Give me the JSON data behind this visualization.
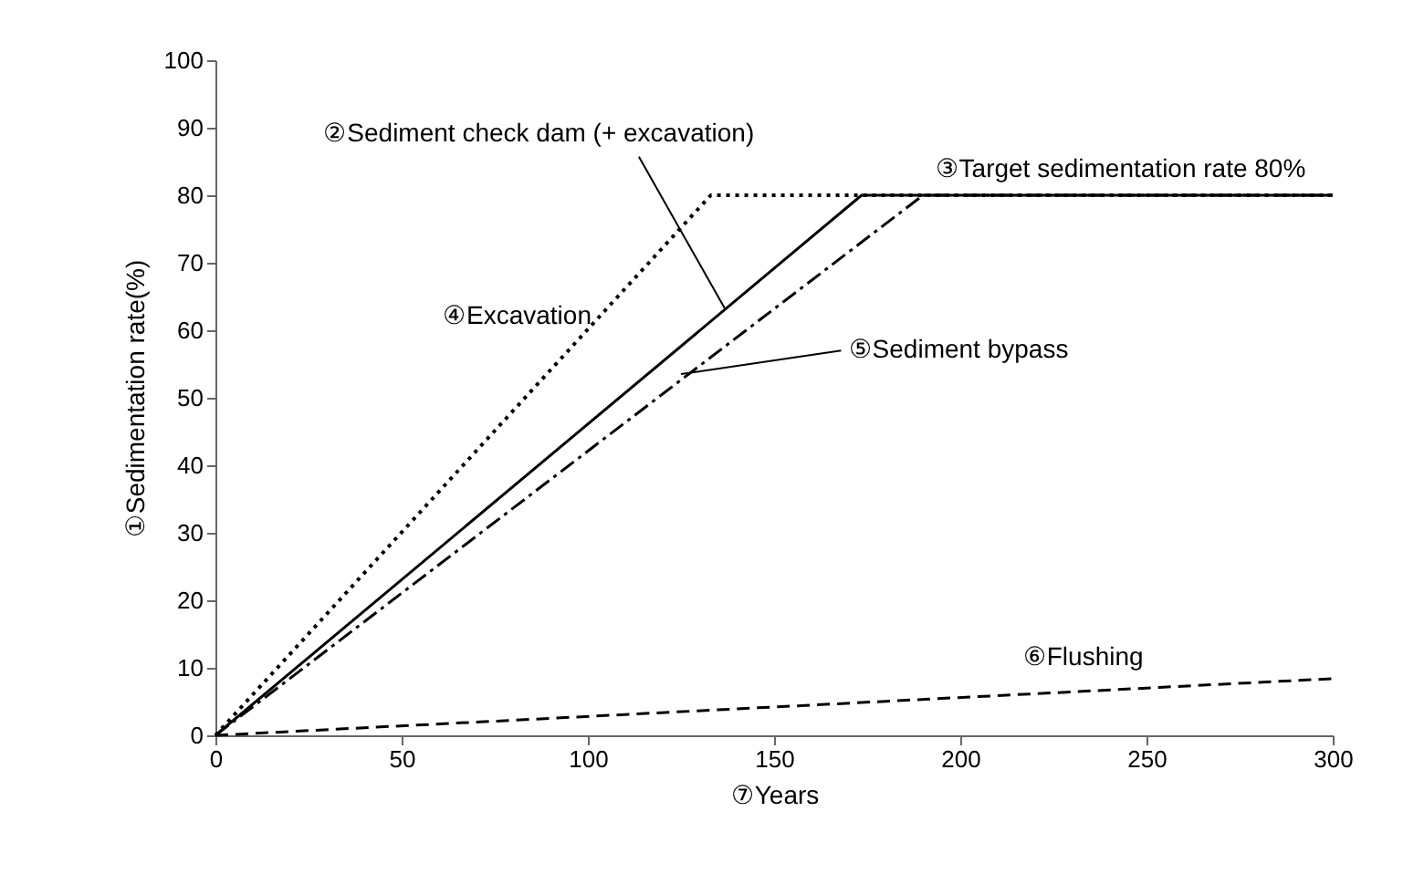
{
  "chart_data": {
    "type": "line",
    "xlabel": "⑦Years",
    "ylabel": "①Sedimentation rate(%)",
    "series": [
      {
        "x": [
          0,
          133,
          300
        ],
        "values": [
          0,
          80,
          80
        ],
        "color": "#000000",
        "line_style": "dotted"
      },
      {
        "x": [
          0,
          173.5,
          300
        ],
        "values": [
          0,
          80,
          80
        ],
        "color": "#000000",
        "line_style": "solid"
      },
      {
        "x": [
          0,
          190,
          300
        ],
        "values": [
          0,
          80,
          80
        ],
        "color": "#000000",
        "line_style": "dashdot"
      },
      {
        "x": [
          0,
          150,
          300
        ],
        "values": [
          0,
          4.2,
          8.4
        ],
        "color": "#000000",
        "line_style": "dashed"
      }
    ],
    "annotations": [
      {
        "text": "②Sediment check dam (+ excavation)",
        "x": 137,
        "y": 63
      },
      {
        "text": "③Target sedimentation rate 80%",
        "x": 243,
        "y": 80
      },
      {
        "text": "④Excavation",
        "x": 81,
        "y": 49
      },
      {
        "text": "⑤Sediment bypass",
        "x": 125,
        "y": 53.5
      },
      {
        "text": "⑥Flushing",
        "x": 233,
        "y": 6.5
      }
    ],
    "xlim": [
      0,
      300
    ],
    "xticks": [
      0,
      50,
      100,
      150,
      200,
      250,
      300
    ],
    "ylim": [
      0,
      100
    ],
    "yticks": [
      0,
      10,
      20,
      30,
      40,
      50,
      60,
      70,
      80,
      90,
      100
    ],
    "grid": false,
    "marker": "none"
  }
}
